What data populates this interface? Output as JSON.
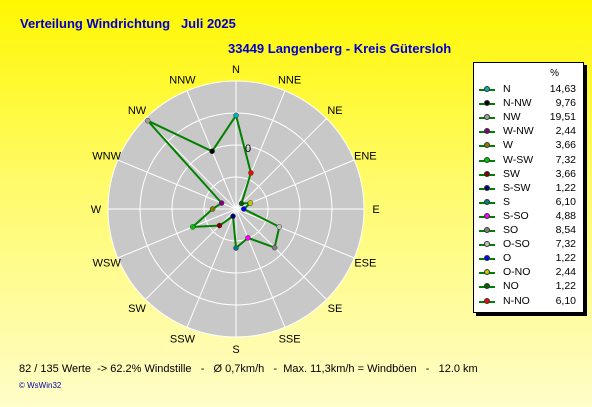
{
  "header": {
    "title": "Verteilung Windrichtung   Juli 2025",
    "subtitle": "33449 Langenberg - Kreis Gütersloh"
  },
  "chart_data": {
    "type": "radar",
    "title": "Verteilung Windrichtung   Juli 2025",
    "subtitle": "33449 Langenberg - Kreis Gütersloh",
    "unit": "%",
    "center_label": "0",
    "directions": [
      "N",
      "NNE",
      "NE",
      "ENE",
      "E",
      "ESE",
      "SE",
      "SSE",
      "S",
      "SSW",
      "SW",
      "WSW",
      "W",
      "WNW",
      "NW",
      "NNW"
    ],
    "direction_labels": [
      "N",
      "NNE",
      "NE",
      "ENE",
      "E",
      "ESE",
      "SE",
      "SSE",
      "S",
      "SSW",
      "SW",
      "WSW",
      "W",
      "WNW",
      "NW",
      "NNW"
    ],
    "series": [
      {
        "name": "Windrichtung",
        "color": "#008000"
      }
    ],
    "legend": [
      {
        "name": "N",
        "value": "14,63",
        "numeric": 14.63,
        "color": "#00b4b4"
      },
      {
        "name": "N-NW",
        "value": "9,76",
        "numeric": 9.76,
        "color": "#000000"
      },
      {
        "name": "NW",
        "value": "19,51",
        "numeric": 19.51,
        "color": "#a0a0a0"
      },
      {
        "name": "W-NW",
        "value": "2,44",
        "numeric": 2.44,
        "color": "#800080"
      },
      {
        "name": "W",
        "value": "3,66",
        "numeric": 3.66,
        "color": "#808000"
      },
      {
        "name": "W-SW",
        "value": "7,32",
        "numeric": 7.32,
        "color": "#00c800"
      },
      {
        "name": "SW",
        "value": "3,66",
        "numeric": 3.66,
        "color": "#800000"
      },
      {
        "name": "S-SW",
        "value": "1,22",
        "numeric": 1.22,
        "color": "#000080"
      },
      {
        "name": "S",
        "value": "6,10",
        "numeric": 6.1,
        "color": "#008080"
      },
      {
        "name": "S-SO",
        "value": "4,88",
        "numeric": 4.88,
        "color": "#ff00ff"
      },
      {
        "name": "SO",
        "value": "8,54",
        "numeric": 8.54,
        "color": "#808080"
      },
      {
        "name": "O-SO",
        "value": "7,32",
        "numeric": 7.32,
        "color": "#c0c0c0"
      },
      {
        "name": "O",
        "value": "1,22",
        "numeric": 1.22,
        "color": "#0000ff"
      },
      {
        "name": "O-NO",
        "value": "2,44",
        "numeric": 2.44,
        "color": "#c8c800"
      },
      {
        "name": "NO",
        "value": "1,22",
        "numeric": 1.22,
        "color": "#006400"
      },
      {
        "name": "N-NO",
        "value": "6,10",
        "numeric": 6.1,
        "color": "#ff0000"
      }
    ],
    "radial_max": 20,
    "rings": 4,
    "legend_position": "right",
    "colors": {
      "polygon": "#008000",
      "rose_fill": "#c8c8c8",
      "grid": "#ffffff",
      "title": "#0000cc"
    }
  },
  "footer": {
    "text": "82 / 135 Werte  -> 62.2% Windstille   -   Ø 0,7km/h   -  Max. 11,3km/h = Windböen   -   12.0 km",
    "credit": "© WsWin32"
  }
}
